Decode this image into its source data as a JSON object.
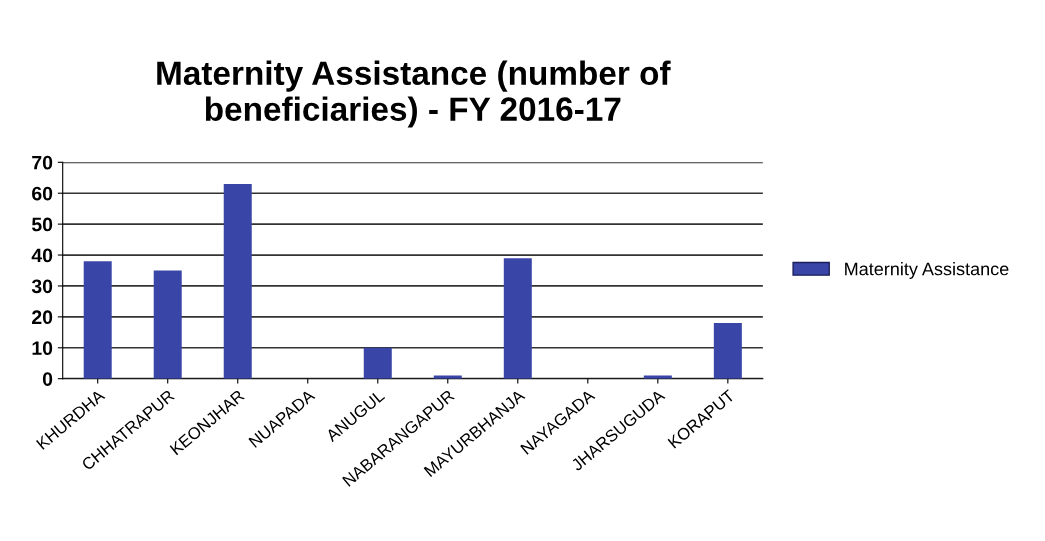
{
  "chart_data": {
    "type": "bar",
    "title": "Maternity Assistance (number of\nbeneficiaries) - FY 2016-17",
    "categories": [
      "KHURDHA",
      "CHHATRAPUR",
      "KEONJHAR",
      "NUAPADA",
      "ANUGUL",
      "NABARANGAPUR",
      "MAYURBHANJA",
      "NAYAGADA",
      "JHARSUGUDA",
      "KORAPUT"
    ],
    "series": [
      {
        "name": "Maternity Assistance",
        "color": "#3a45a8",
        "values": [
          38,
          35,
          63,
          0,
          10,
          1,
          39,
          0,
          1,
          18
        ]
      }
    ],
    "ylim": [
      0,
      70
    ],
    "yticks": [
      0,
      10,
      20,
      30,
      40,
      50,
      60,
      70
    ],
    "grid": "y",
    "legend": "right"
  }
}
